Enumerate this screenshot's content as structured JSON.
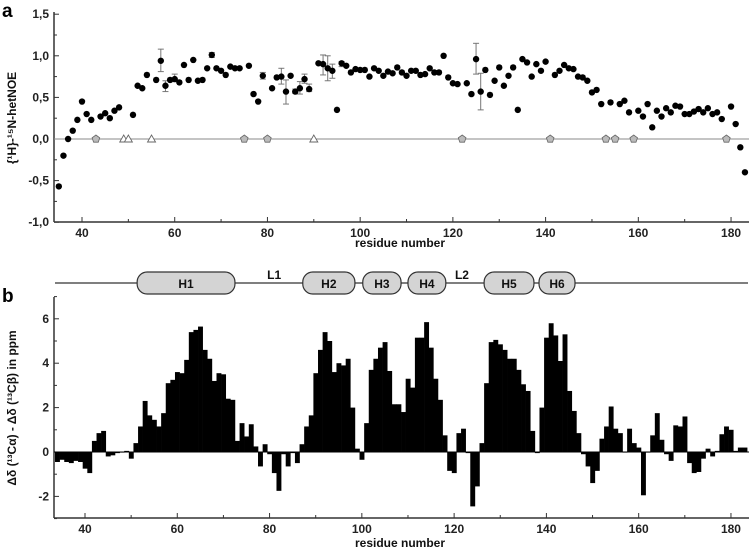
{
  "chart_data": [
    {
      "panel": "a",
      "type": "scatter",
      "xlabel": "residue number",
      "ylabel": "{¹H}-¹⁵N-hetNOE",
      "xlim": [
        34,
        184
      ],
      "ylim": [
        -1.0,
        1.5
      ],
      "x_ticks": [
        "40",
        "60",
        "80",
        "100",
        "120",
        "140",
        "160",
        "180"
      ],
      "y_ticks": [
        "-1,0",
        "-0,5",
        "0,0",
        "0,5",
        "1,0",
        "1,5"
      ],
      "zero_line": true,
      "series": [
        {
          "marker": "filled-circle",
          "points": [
            [
              35,
              -0.57
            ],
            [
              36,
              -0.2
            ],
            [
              37,
              0.0
            ],
            [
              38,
              0.1
            ],
            [
              39,
              0.23
            ],
            [
              40,
              0.45
            ],
            [
              41,
              0.3
            ],
            [
              42,
              0.23
            ],
            [
              44,
              0.27
            ],
            [
              45,
              0.31
            ],
            [
              46,
              0.25
            ],
            [
              47,
              0.34
            ],
            [
              48,
              0.38
            ],
            [
              51,
              0.29
            ],
            [
              52,
              0.64
            ],
            [
              53,
              0.61
            ],
            [
              54,
              0.77
            ],
            [
              56,
              0.71
            ],
            [
              57,
              0.94
            ],
            [
              58,
              0.64
            ],
            [
              59,
              0.71
            ],
            [
              60,
              0.72
            ],
            [
              61,
              0.68
            ],
            [
              62,
              0.89
            ],
            [
              63,
              0.71
            ],
            [
              64,
              0.95
            ],
            [
              65,
              0.7
            ],
            [
              66,
              0.71
            ],
            [
              67,
              0.85
            ],
            [
              68,
              1.01
            ],
            [
              69,
              0.85
            ],
            [
              70,
              0.82
            ],
            [
              71,
              0.77
            ],
            [
              72,
              0.87
            ],
            [
              73,
              0.85
            ],
            [
              74,
              0.85
            ],
            [
              76,
              0.88
            ],
            [
              77,
              0.54
            ],
            [
              78,
              0.45
            ],
            [
              79,
              0.76
            ],
            [
              81,
              0.61
            ],
            [
              82,
              0.74
            ],
            [
              83,
              0.75
            ],
            [
              84,
              0.57
            ],
            [
              85,
              0.76
            ],
            [
              86,
              0.57
            ],
            [
              87,
              0.61
            ],
            [
              88,
              0.72
            ],
            [
              89,
              0.6
            ],
            [
              91,
              0.91
            ],
            [
              92,
              0.9
            ],
            [
              93,
              0.85
            ],
            [
              94,
              0.82
            ],
            [
              95,
              0.35
            ],
            [
              96,
              0.91
            ],
            [
              97,
              0.88
            ],
            [
              98,
              0.8
            ],
            [
              99,
              0.84
            ],
            [
              100,
              0.83
            ],
            [
              101,
              0.83
            ],
            [
              102,
              0.75
            ],
            [
              103,
              0.85
            ],
            [
              104,
              0.82
            ],
            [
              105,
              0.76
            ],
            [
              106,
              0.81
            ],
            [
              107,
              0.79
            ],
            [
              108,
              0.86
            ],
            [
              109,
              0.8
            ],
            [
              110,
              0.76
            ],
            [
              111,
              0.82
            ],
            [
              112,
              0.82
            ],
            [
              113,
              0.77
            ],
            [
              114,
              0.78
            ],
            [
              115,
              0.85
            ],
            [
              116,
              0.8
            ],
            [
              117,
              0.8
            ],
            [
              118,
              1.0
            ],
            [
              119,
              0.74
            ],
            [
              120,
              0.67
            ],
            [
              121,
              0.66
            ],
            [
              123,
              0.67
            ],
            [
              124,
              0.54
            ],
            [
              125,
              0.96
            ],
            [
              126,
              0.57
            ],
            [
              127,
              0.83
            ],
            [
              128,
              0.53
            ],
            [
              129,
              0.7
            ],
            [
              130,
              0.86
            ],
            [
              131,
              0.64
            ],
            [
              132,
              0.76
            ],
            [
              133,
              0.86
            ],
            [
              134,
              0.35
            ],
            [
              135,
              0.96
            ],
            [
              136,
              0.92
            ],
            [
              137,
              0.75
            ],
            [
              138,
              0.9
            ],
            [
              139,
              0.82
            ],
            [
              140,
              0.93
            ],
            [
              142,
              0.77
            ],
            [
              143,
              0.82
            ],
            [
              144,
              0.89
            ],
            [
              145,
              0.85
            ],
            [
              146,
              0.84
            ],
            [
              147,
              0.75
            ],
            [
              148,
              0.74
            ],
            [
              149,
              0.7
            ],
            [
              150,
              0.56
            ],
            [
              151,
              0.59
            ],
            [
              152,
              0.42
            ],
            [
              154,
              0.44
            ],
            [
              156,
              0.42
            ],
            [
              157,
              0.46
            ],
            [
              158,
              0.32
            ],
            [
              160,
              0.34
            ],
            [
              161,
              0.27
            ],
            [
              162,
              0.42
            ],
            [
              163,
              0.14
            ],
            [
              164,
              0.34
            ],
            [
              165,
              0.27
            ],
            [
              166,
              0.37
            ],
            [
              167,
              0.32
            ],
            [
              168,
              0.4
            ],
            [
              169,
              0.39
            ],
            [
              170,
              0.3
            ],
            [
              171,
              0.3
            ],
            [
              172,
              0.33
            ],
            [
              173,
              0.36
            ],
            [
              174,
              0.32
            ],
            [
              175,
              0.37
            ],
            [
              176,
              0.3
            ],
            [
              177,
              0.32
            ],
            [
              178,
              0.24
            ],
            [
              180,
              0.39
            ],
            [
              181,
              0.18
            ],
            [
              182,
              -0.1
            ],
            [
              183,
              -0.4
            ]
          ]
        },
        {
          "marker": "gray-pentagon",
          "points": [
            [
              43,
              0
            ],
            [
              75,
              0
            ],
            [
              80,
              0
            ],
            [
              122,
              0
            ],
            [
              141,
              0
            ],
            [
              153,
              0
            ],
            [
              155,
              0
            ],
            [
              159,
              0
            ],
            [
              179,
              0
            ]
          ]
        },
        {
          "marker": "open-triangle",
          "points": [
            [
              49,
              0
            ],
            [
              50,
              0
            ],
            [
              55,
              0
            ],
            [
              90,
              0
            ]
          ]
        }
      ],
      "error_bars": [
        [
          57,
          0.81,
          1.08
        ],
        [
          58,
          0.57,
          0.7
        ],
        [
          60,
          0.69,
          0.78
        ],
        [
          68,
          0.98,
          1.04
        ],
        [
          79,
          0.72,
          0.8
        ],
        [
          83,
          0.66,
          0.85
        ],
        [
          84,
          0.42,
          0.71
        ],
        [
          86,
          0.55,
          0.6
        ],
        [
          87,
          0.54,
          0.69
        ],
        [
          88,
          0.67,
          0.78
        ],
        [
          89,
          0.57,
          0.66
        ],
        [
          92,
          0.77,
          1.01
        ],
        [
          93,
          0.7,
          1.0
        ],
        [
          94,
          0.73,
          0.9
        ],
        [
          96,
          0.87,
          0.93
        ],
        [
          125,
          0.78,
          1.15
        ],
        [
          126,
          0.35,
          0.79
        ]
      ]
    },
    {
      "panel": "b",
      "type": "bar",
      "xlabel": "residue number",
      "ylabel": "Δδ (¹³Cα) - Δδ (¹³Cβ) in ppm",
      "xlim": [
        33.5,
        184
      ],
      "ylim": [
        -3,
        7
      ],
      "x_ticks": [
        "40",
        "60",
        "80",
        "100",
        "120",
        "140",
        "160",
        "180"
      ],
      "y_ticks": [
        "-2",
        "0",
        "2",
        "4",
        "6"
      ],
      "bar_color": "#000000",
      "first_residue": 34,
      "values": [
        -0.45,
        -0.35,
        -0.45,
        -0.5,
        -0.4,
        -0.45,
        -0.75,
        -0.95,
        0.5,
        0.85,
        0.95,
        -0.2,
        -0.15,
        -0.05,
        0.0,
        0.05,
        -0.3,
        0.4,
        1.15,
        2.3,
        1.65,
        1.45,
        1.15,
        1.75,
        3.1,
        3.25,
        3.6,
        3.55,
        4.15,
        5.4,
        5.5,
        5.65,
        4.6,
        4.2,
        3.2,
        3.55,
        3.5,
        2.4,
        2.35,
        0.5,
        1.3,
        0.7,
        1.25,
        0.25,
        -0.65,
        0.35,
        -0.1,
        -0.95,
        -1.75,
        -0.1,
        -0.65,
        -0.05,
        -0.5,
        0.35,
        1.15,
        1.65,
        3.55,
        4.6,
        5.4,
        5.0,
        3.6,
        4.0,
        3.9,
        4.2,
        2.0,
        0.15,
        -0.35,
        1.3,
        3.7,
        4.2,
        4.7,
        4.95,
        3.65,
        2.15,
        2.15,
        1.8,
        3.3,
        2.9,
        5.15,
        5.15,
        5.85,
        4.7,
        3.3,
        2.35,
        0.75,
        -0.85,
        -0.95,
        0.85,
        1.05,
        -0.05,
        -2.45,
        -1.55,
        0.4,
        3.1,
        4.95,
        5.05,
        4.85,
        4.6,
        4.2,
        4.2,
        3.7,
        3.05,
        2.75,
        0.95,
        -0.05,
        2.0,
        5.15,
        5.8,
        5.25,
        4.1,
        5.3,
        2.75,
        1.85,
        0.85,
        -0.1,
        -0.65,
        -1.4,
        -0.85,
        0.6,
        1.15,
        2.05,
        1.05,
        0.85,
        0.0,
        1.05,
        0.4,
        0.2,
        -1.95,
        0.0,
        0.75,
        1.75,
        0.55,
        -0.1,
        -0.4,
        1.2,
        1.15,
        1.6,
        -0.5,
        -0.95,
        -0.9,
        -0.3,
        0.15,
        -0.2,
        0.05,
        0.8,
        1.15,
        1.0,
        0.05,
        0.2,
        0.2
      ],
      "secondary_structure": [
        {
          "label": "H1",
          "type": "helix",
          "start": 51.3,
          "end": 72.5
        },
        {
          "label": "L1",
          "type": "loop",
          "at": 81
        },
        {
          "label": "H2",
          "type": "helix",
          "start": 87.2,
          "end": 98.5
        },
        {
          "label": "H3",
          "type": "helix",
          "start": 100.2,
          "end": 108.5
        },
        {
          "label": "H4",
          "type": "helix",
          "start": 110.0,
          "end": 118.2
        },
        {
          "label": "L2",
          "type": "loop",
          "at": 121.7
        },
        {
          "label": "H5",
          "type": "helix",
          "start": 126.5,
          "end": 137.3
        },
        {
          "label": "H6",
          "type": "helix",
          "start": 138.4,
          "end": 146.2
        }
      ],
      "helix_color": "#d4d4d4"
    }
  ]
}
